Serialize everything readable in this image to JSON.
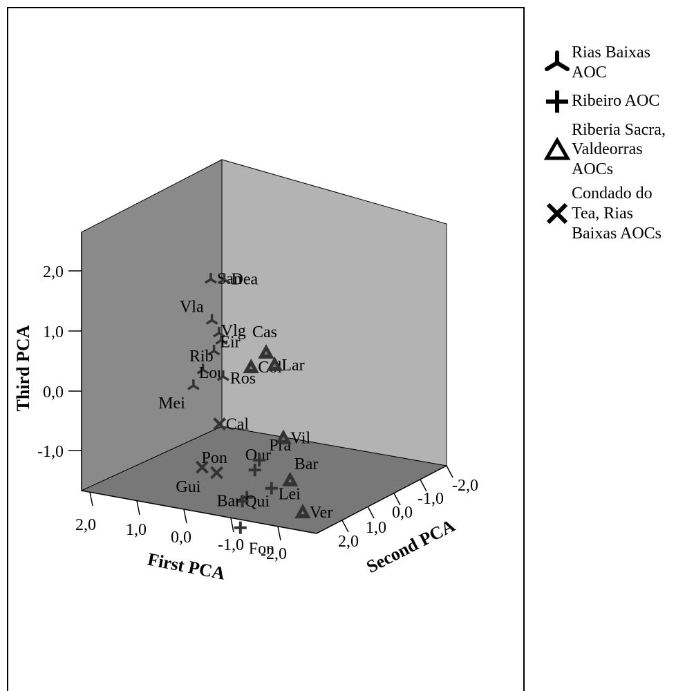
{
  "chart_data": {
    "type": "scatter",
    "projection": "3d",
    "xlabel": "First PCA",
    "ylabel": "Second PCA",
    "zlabel": "Third PCA",
    "x_ticks": [
      "2,0",
      "1,0",
      "0,0",
      "-1,0",
      "-2,0"
    ],
    "y_ticks": [
      "2,0",
      "1,0",
      "0,0",
      "-1,0",
      "-2,0"
    ],
    "z_ticks": [
      "2,0",
      "1,0",
      "0,0",
      "-1,0"
    ],
    "legend_position": "right",
    "series": [
      {
        "name": "Rias Baixas AOC",
        "legend_label": "Rias Baixas\nAOC",
        "marker": "tri-y",
        "points": [
          {
            "label": "San",
            "x": 0.2,
            "y": -0.2,
            "z": 2.2
          },
          {
            "label": "Dea",
            "x": -0.7,
            "y": -0.8,
            "z": 2.0
          },
          {
            "label": "Vla",
            "x": 0.6,
            "y": 0.3,
            "z": 1.7
          },
          {
            "label": "Vlg",
            "x": 0.4,
            "y": 0.3,
            "z": 1.5
          },
          {
            "label": "Rib",
            "x": 0.8,
            "y": 0.6,
            "z": 1.3
          },
          {
            "label": "Eir",
            "x": -0.1,
            "y": -0.2,
            "z": 1.2
          },
          {
            "label": "Lou",
            "x": 1.2,
            "y": 0.7,
            "z": 1.0
          },
          {
            "label": "Mei",
            "x": 1.9,
            "y": 1.2,
            "z": 0.9
          },
          {
            "label": "Ros",
            "x": 0.8,
            "y": 0.9,
            "z": 1.0
          }
        ]
      },
      {
        "name": "Ribeiro AOC",
        "legend_label": "Ribeiro AOC",
        "marker": "plus",
        "points": [
          {
            "label": "Our",
            "x": -0.1,
            "y": 0.9,
            "z": -0.5
          },
          {
            "label": "Pra",
            "x": -0.4,
            "y": 0.7,
            "z": -0.4
          },
          {
            "label": "Lei",
            "x": -0.4,
            "y": 1.1,
            "z": -0.7
          },
          {
            "label": "Qui",
            "x": 0.3,
            "y": 1.1,
            "z": -0.9
          },
          {
            "label": "Bar",
            "x": 0.6,
            "y": 1.3,
            "z": -0.9
          },
          {
            "label": "Fon",
            "x": 1.0,
            "y": 1.7,
            "z": -1.2
          }
        ]
      },
      {
        "name": "Riberia Sacra, Valdeorras AOCs",
        "legend_label": "Riberia Sacra,\nValdeorras\nAOCs",
        "marker": "triangle",
        "points": [
          {
            "label": "Cas",
            "x": -1.8,
            "y": -0.7,
            "z": 0.9
          },
          {
            "label": "Col",
            "x": -1.2,
            "y": -0.5,
            "z": 0.7
          },
          {
            "label": "Lar",
            "x": -2.3,
            "y": -1.0,
            "z": 0.6
          },
          {
            "label": "Vil",
            "x": -1.6,
            "y": 0.1,
            "z": -0.2
          },
          {
            "label": "Bar",
            "x": -1.1,
            "y": 0.9,
            "z": -0.6
          },
          {
            "label": "Ver",
            "x": -1.2,
            "y": 1.2,
            "z": -1.0
          }
        ]
      },
      {
        "name": "Condado do Tea, Rias Baixas AOCs",
        "legend_label": "Condado do\nTea, Rias\nBaixas AOCs",
        "marker": "x",
        "points": [
          {
            "label": "Cal",
            "x": 0.9,
            "y": 0.9,
            "z": 0.2
          },
          {
            "label": "Pon",
            "x": 1.5,
            "y": 1.5,
            "z": -0.4
          },
          {
            "label": "Gui",
            "x": 2.0,
            "y": 1.6,
            "z": -0.3
          }
        ]
      }
    ]
  },
  "colors": {
    "back_panel": "#b3b3b3",
    "left_panel": "#8a8a8a",
    "floor_panel": "#787878",
    "marker": "#333333"
  }
}
